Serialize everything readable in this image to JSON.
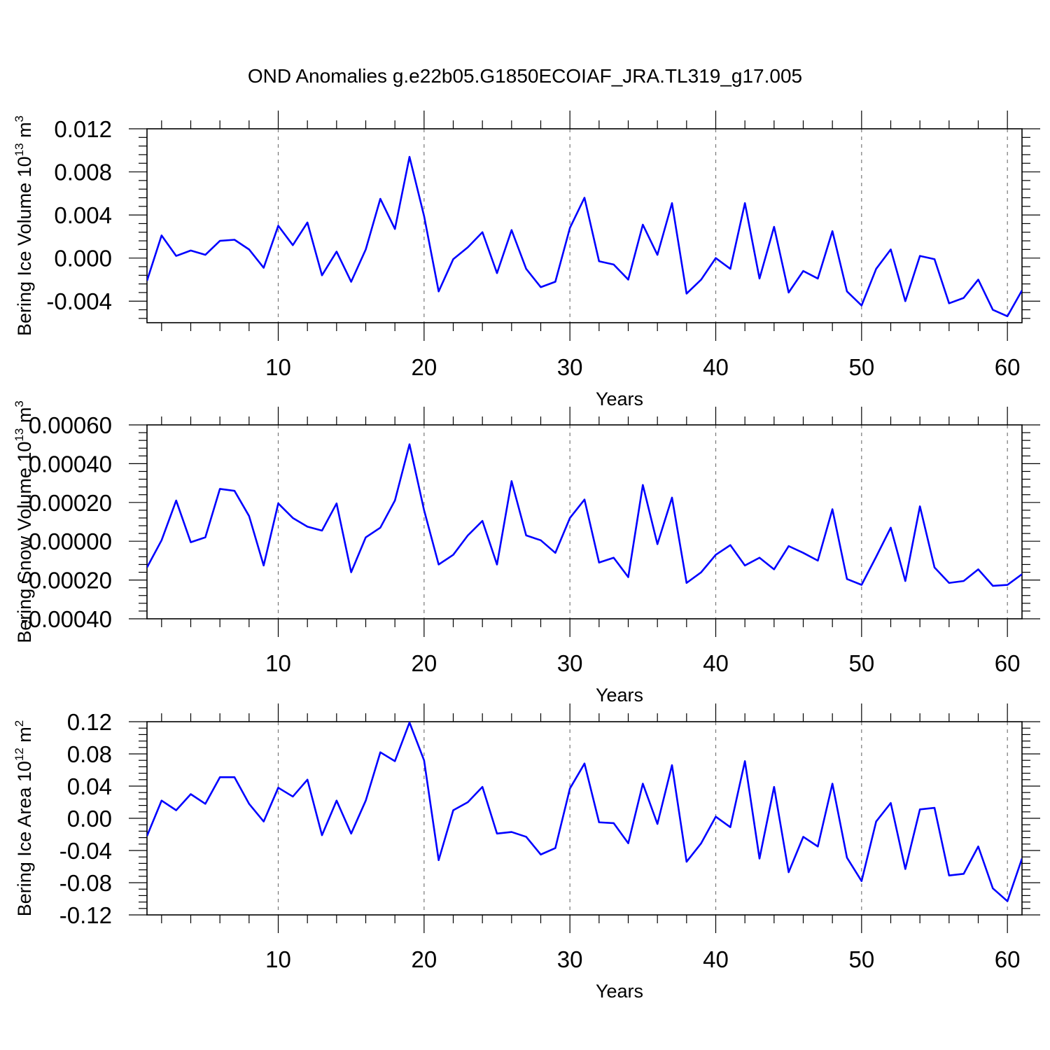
{
  "chart_data": [
    {
      "type": "line",
      "title": "OND Anomalies g.e22b05.G1850ECOIAF_JRA.TL319_g17.005",
      "ylabel": "Bering Ice Volume 10",
      "ylabel_exp": "13",
      "ylabel_unit": " m",
      "ylabel_unit_exp": "3",
      "xlabel": "Years",
      "xlim": [
        1,
        61
      ],
      "ylim": [
        -0.006,
        0.012
      ],
      "xticks": [
        10,
        20,
        30,
        40,
        50,
        60
      ],
      "xtick_labels": [
        "10",
        "20",
        "30",
        "40",
        "50",
        "60"
      ],
      "yticks": [
        -0.004,
        0.0,
        0.004,
        0.008,
        0.012
      ],
      "ytick_labels": [
        "-0.004",
        "0.000",
        "0.004",
        "0.008",
        "0.012"
      ],
      "grid_x": [
        10,
        20,
        30,
        40,
        50,
        60
      ],
      "series": [
        {
          "name": "Bering Ice Volume",
          "color": "#0000ff",
          "values": [
            -0.0021,
            0.0021,
            0.0002,
            0.0007,
            0.0003,
            0.0016,
            0.0017,
            0.0008,
            -0.0009,
            0.003,
            0.0012,
            0.0033,
            -0.0016,
            0.0006,
            -0.0022,
            0.0008,
            0.0055,
            0.0027,
            0.0094,
            0.0039,
            -0.0031,
            -0.0001,
            0.001,
            0.0024,
            -0.0014,
            0.0026,
            -0.001,
            -0.0027,
            -0.0022,
            0.0028,
            0.0056,
            -0.0003,
            -0.0006,
            -0.002,
            0.0031,
            0.0003,
            0.0051,
            -0.0033,
            -0.002,
            0.0,
            -0.001,
            0.0051,
            -0.0019,
            0.0029,
            -0.0032,
            -0.0012,
            -0.0019,
            0.0025,
            -0.0031,
            -0.0044,
            -0.001,
            0.0008,
            -0.004,
            0.0002,
            -0.0001,
            -0.0042,
            -0.0037,
            -0.002,
            -0.0048,
            -0.0054,
            -0.003
          ]
        }
      ]
    },
    {
      "type": "line",
      "ylabel": "Bering Snow Volume 10",
      "ylabel_exp": "13",
      "ylabel_unit": " m",
      "ylabel_unit_exp": "3",
      "xlabel": "Years",
      "xlim": [
        1,
        61
      ],
      "ylim": [
        -0.0004,
        0.0006
      ],
      "xticks": [
        10,
        20,
        30,
        40,
        50,
        60
      ],
      "xtick_labels": [
        "10",
        "20",
        "30",
        "40",
        "50",
        "60"
      ],
      "yticks": [
        -0.0004,
        -0.0002,
        0.0,
        0.0002,
        0.0004,
        0.0006
      ],
      "ytick_labels": [
        "-0.00040",
        "-0.00020",
        "0.00000",
        "0.00020",
        "0.00040",
        "0.00060"
      ],
      "grid_x": [
        10,
        20,
        30,
        40,
        50,
        60
      ],
      "series": [
        {
          "name": "Bering Snow Volume",
          "color": "#0000ff",
          "values": [
            -0.000135,
            5e-06,
            0.00021,
            -5e-06,
            2e-05,
            0.00027,
            0.00026,
            0.00013,
            -0.000125,
            0.000195,
            0.00012,
            7.5e-05,
            5.5e-05,
            0.000195,
            -0.00016,
            2e-05,
            7e-05,
            0.00021,
            0.0005,
            0.00016,
            -0.00012,
            -7e-05,
            3e-05,
            0.000105,
            -0.00012,
            0.00031,
            3e-05,
            5e-06,
            -6e-05,
            0.00012,
            0.000215,
            -0.00011,
            -8.5e-05,
            -0.000185,
            0.00029,
            -1.5e-05,
            0.000225,
            -0.000215,
            -0.00016,
            -7e-05,
            -2e-05,
            -0.000125,
            -8.5e-05,
            -0.000145,
            -2.5e-05,
            -6e-05,
            -0.0001,
            0.000165,
            -0.000195,
            -0.000225,
            -8e-05,
            7e-05,
            -0.000205,
            0.00018,
            -0.000135,
            -0.000215,
            -0.000205,
            -0.000145,
            -0.00023,
            -0.000225,
            -0.00017
          ]
        }
      ]
    },
    {
      "type": "line",
      "ylabel": "Bering Ice Area 10",
      "ylabel_exp": "12",
      "ylabel_unit": " m",
      "ylabel_unit_exp": "2",
      "xlabel": "Years",
      "xlim": [
        1,
        61
      ],
      "ylim": [
        -0.12,
        0.12
      ],
      "xticks": [
        10,
        20,
        30,
        40,
        50,
        60
      ],
      "xtick_labels": [
        "10",
        "20",
        "30",
        "40",
        "50",
        "60"
      ],
      "yticks": [
        -0.12,
        -0.08,
        -0.04,
        0.0,
        0.04,
        0.08,
        0.12
      ],
      "ytick_labels": [
        "-0.12",
        "-0.08",
        "-0.04",
        "0.00",
        "0.04",
        "0.08",
        "0.12"
      ],
      "grid_x": [
        10,
        20,
        30,
        40,
        50,
        60
      ],
      "series": [
        {
          "name": "Bering Ice Area",
          "color": "#0000ff",
          "values": [
            -0.022,
            0.022,
            0.01,
            0.03,
            0.018,
            0.051,
            0.051,
            0.018,
            -0.004,
            0.038,
            0.027,
            0.048,
            -0.021,
            0.022,
            -0.019,
            0.022,
            0.082,
            0.071,
            0.119,
            0.072,
            -0.052,
            0.01,
            0.02,
            0.039,
            -0.019,
            -0.017,
            -0.023,
            -0.045,
            -0.037,
            0.037,
            0.068,
            -0.005,
            -0.006,
            -0.031,
            0.043,
            -0.007,
            0.066,
            -0.054,
            -0.031,
            0.002,
            -0.011,
            0.071,
            -0.05,
            0.039,
            -0.067,
            -0.023,
            -0.035,
            0.043,
            -0.049,
            -0.078,
            -0.004,
            0.019,
            -0.063,
            0.011,
            0.013,
            -0.071,
            -0.069,
            -0.035,
            -0.087,
            -0.103,
            -0.05
          ]
        }
      ]
    }
  ]
}
